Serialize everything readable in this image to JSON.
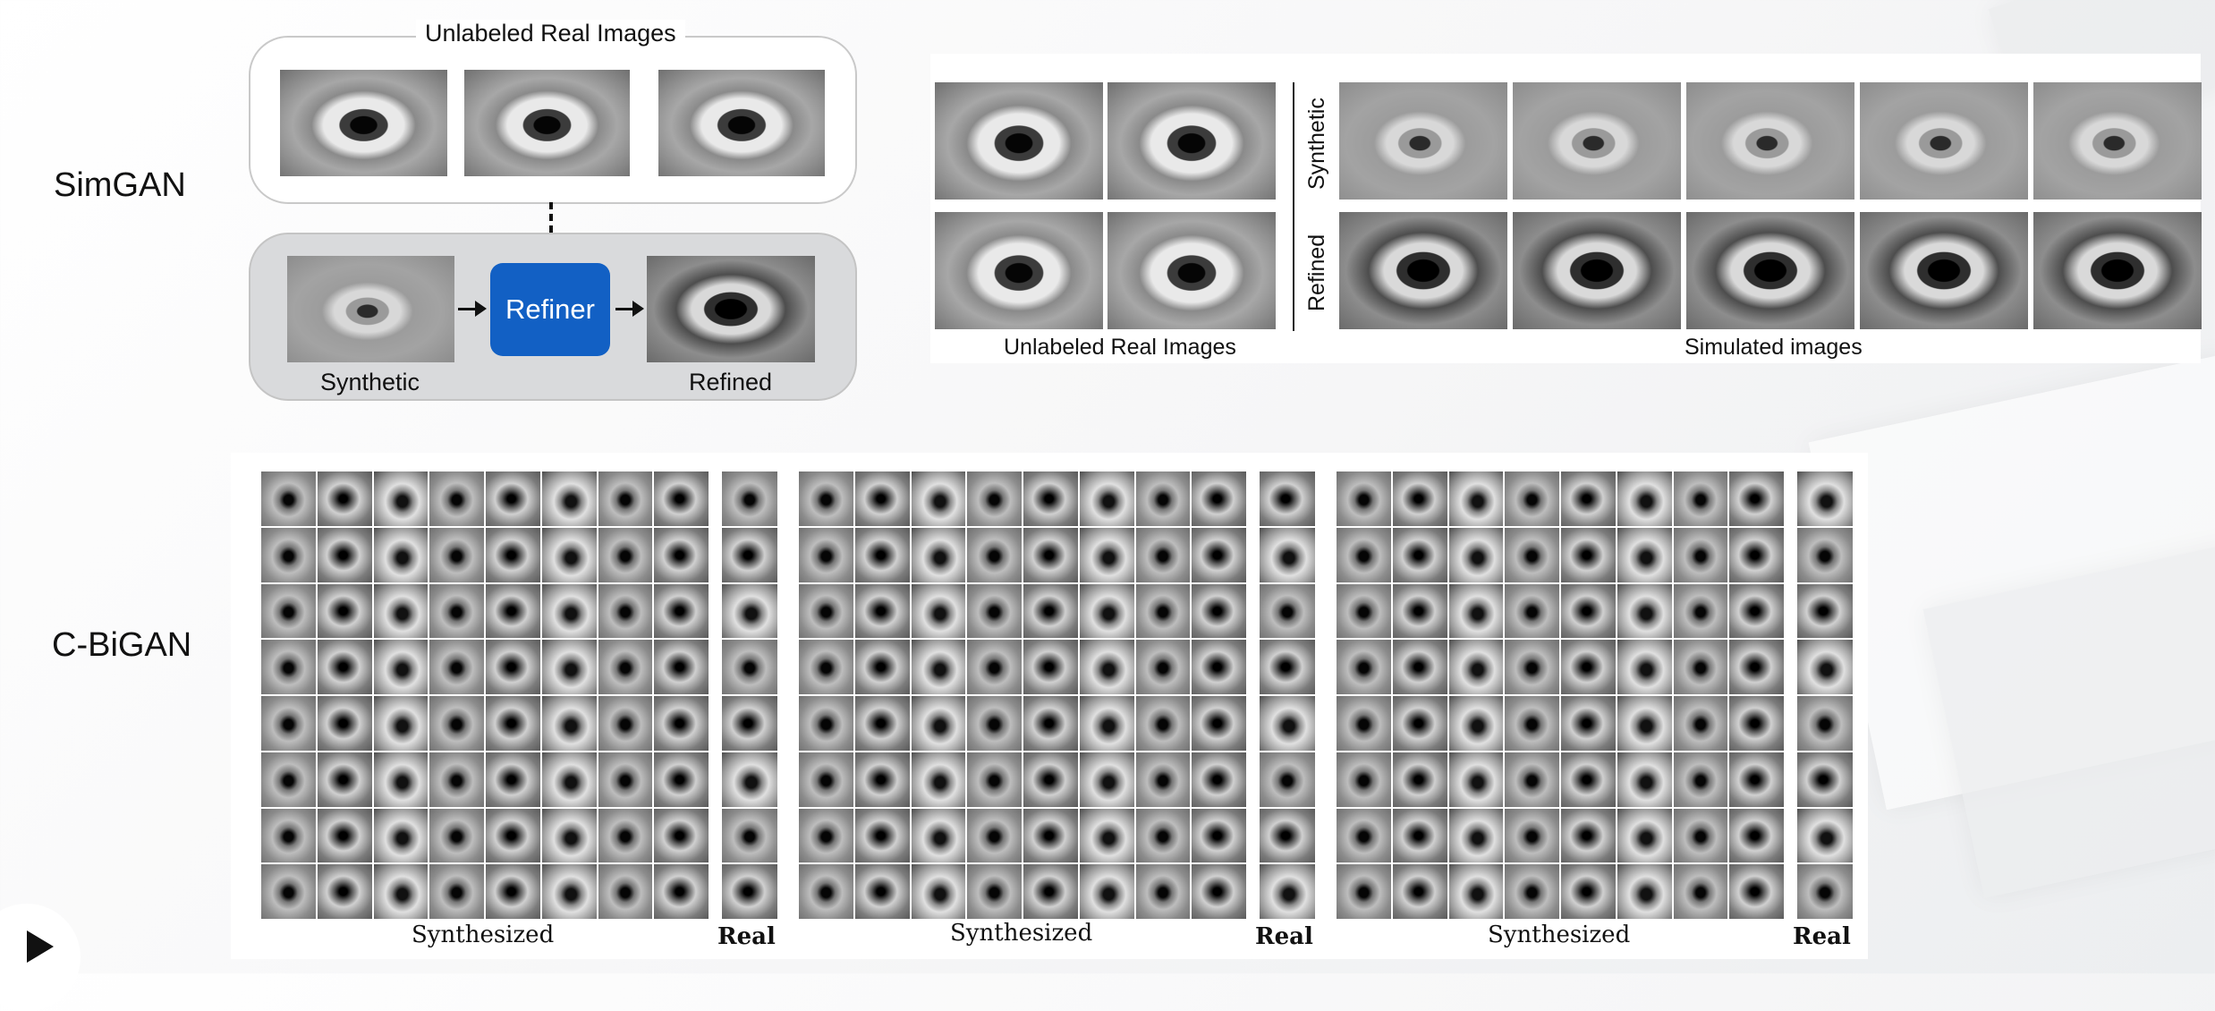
{
  "rows": {
    "simgan": "SimGAN",
    "cbigan": "C-BiGAN"
  },
  "simgan_diagram": {
    "real_title": "Unlabeled Real Images",
    "refiner": "Refiner",
    "synthetic": "Synthetic",
    "refined": "Refined"
  },
  "simgan_figure": {
    "synthetic_row": "Synthetic",
    "refined_row": "Refined",
    "left_caption": "Unlabeled Real Images",
    "right_caption": "Simulated images"
  },
  "cbigan": {
    "panels": [
      {
        "synth_label": "Synthesized",
        "real_label": "Real"
      },
      {
        "synth_label": "Synthesized",
        "real_label": "Real"
      },
      {
        "synth_label": "Synthesized",
        "real_label": "Real"
      }
    ]
  }
}
